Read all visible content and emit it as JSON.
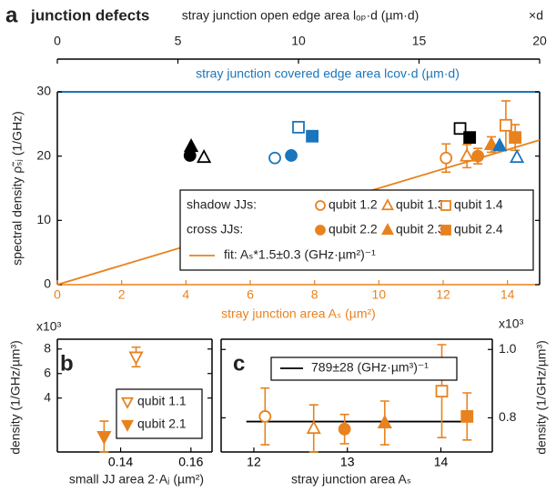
{
  "chart_data": [
    {
      "type": "scatter",
      "panel": "a",
      "title": "junction defects",
      "xlabel": "stray junction area Aₛ (µm²)",
      "x2label": "stray junction open edge area lₒₚ·d  (µm·d)",
      "x2unit": "×d",
      "x3label": "stray junction covered edge area lcov·d  (µm·d)",
      "ylabel": "spectral density ρ̃ₛⱼ (1/GHz)",
      "xlim": [
        0,
        15
      ],
      "xticks": [
        0,
        2,
        4,
        6,
        8,
        10,
        12,
        14
      ],
      "xaxis_color": "#e8821e",
      "x2lim": [
        0,
        20
      ],
      "x2ticks": [
        0,
        5,
        10,
        15,
        20
      ],
      "x3lim": [
        0,
        20
      ],
      "x3_color": "#1a75bc",
      "ylim": [
        0,
        30
      ],
      "yticks": [
        0,
        10,
        20,
        30
      ],
      "y_side": "left",
      "legend_groups": [
        "shadow JJs:",
        "cross JJs:"
      ],
      "fit_slope": 1.5,
      "fit_label": "fit: Aₛ*1.5±0.3  (GHz·µm²)⁻¹",
      "fit_color": "#e8821e",
      "series": [
        {
          "name": "qubit 1.2",
          "color": "#e8821e",
          "marker": "circle",
          "filled": false,
          "x": [
            12.09
          ],
          "values": [
            19.7
          ],
          "errors": [
            2.2
          ]
        },
        {
          "name": "qubit 1.3",
          "color": "#e8821e",
          "marker": "triangle",
          "filled": false,
          "x": [
            12.74
          ],
          "values": [
            20.0
          ],
          "errors": [
            1.8
          ]
        },
        {
          "name": "qubit 1.4",
          "color": "#e8821e",
          "marker": "square",
          "filled": false,
          "x": [
            13.95
          ],
          "values": [
            24.8
          ],
          "errors": [
            3.8
          ]
        },
        {
          "name": "qubit 2.2",
          "color": "#e8821e",
          "marker": "circle",
          "filled": true,
          "x": [
            13.08
          ],
          "values": [
            20.0
          ],
          "errors": [
            1.2
          ]
        },
        {
          "name": "qubit 2.3",
          "color": "#e8821e",
          "marker": "triangle",
          "filled": true,
          "x": [
            13.5
          ],
          "values": [
            21.8
          ],
          "errors": [
            1.2
          ]
        },
        {
          "name": "qubit 2.4",
          "color": "#e8821e",
          "marker": "square",
          "filled": true,
          "x": [
            14.24
          ],
          "values": [
            22.9
          ],
          "errors": [
            2.0
          ]
        },
        {
          "color": "#000000",
          "axis": "x2",
          "markers": [
            "triangle",
            "circle",
            "triangle",
            "square",
            "square"
          ],
          "filled": [
            true,
            true,
            false,
            false,
            true
          ],
          "x": [
            5.55,
            5.5,
            6.08,
            16.7,
            17.1
          ],
          "values": [
            21.5,
            20.1,
            19.8,
            24.3,
            22.9
          ]
        },
        {
          "color": "#1a75bc",
          "axis": "x3",
          "markers": [
            "circle",
            "circle",
            "square",
            "square",
            "triangle",
            "triangle"
          ],
          "filled": [
            false,
            true,
            false,
            true,
            true,
            false
          ],
          "x": [
            9.02,
            9.7,
            10.0,
            10.57,
            18.34,
            19.06
          ],
          "values": [
            19.7,
            20.1,
            24.5,
            23.1,
            21.6,
            19.8
          ]
        }
      ]
    },
    {
      "type": "scatter",
      "panel": "b",
      "multiplier": "x10³",
      "xlabel": "small JJ area 2·Aⱼ (µm²)",
      "ylabel": "density (1/GHz/µm³)",
      "xlim": [
        0.122,
        0.166
      ],
      "xticks": [
        0.14,
        0.16
      ],
      "ylim": [
        -0.4,
        8.8
      ],
      "yticks": [
        4,
        6,
        8
      ],
      "y_side": "left",
      "series": [
        {
          "name": "qubit 1.1",
          "color": "#e8821e",
          "marker": "down",
          "filled": false,
          "x": [
            0.1444
          ],
          "values": [
            7.35
          ],
          "errors": [
            0.8
          ]
        },
        {
          "name": "qubit 2.1",
          "color": "#e8821e",
          "marker": "down",
          "filled": true,
          "x": [
            0.1353
          ],
          "values": [
            0.86
          ],
          "errors": [
            1.26
          ]
        }
      ]
    },
    {
      "type": "scatter",
      "panel": "c",
      "multiplier": "x10³",
      "xlabel": "stray junction area Aₛ",
      "ylabel": "density (1/GHz/µm³)",
      "xlim": [
        11.65,
        14.55
      ],
      "xticks": [
        12,
        13,
        14
      ],
      "ylim": [
        0.7,
        1.03
      ],
      "yticks": [
        0.8,
        {
          "value": 1,
          "label": "1.0"
        }
      ],
      "y_side": "right",
      "fit_value": 0.789,
      "fit_xrange": [
        11.92,
        14.26
      ],
      "fit_label": "789±28 (GHz·µm³)⁻¹",
      "fit_color": "#000000",
      "series": [
        {
          "color": "#e8821e",
          "markers": [
            "circle",
            "triangle",
            "circle",
            "triangle",
            "square",
            "square"
          ],
          "filled": [
            false,
            false,
            true,
            true,
            false,
            true
          ],
          "x": [
            12.12,
            12.64,
            12.97,
            13.4,
            14.01,
            14.28
          ],
          "values": [
            0.804,
            0.769,
            0.767,
            0.785,
            0.878,
            0.804
          ],
          "errors": [
            0.083,
            0.069,
            0.043,
            0.064,
            0.136,
            0.069
          ]
        }
      ]
    }
  ]
}
